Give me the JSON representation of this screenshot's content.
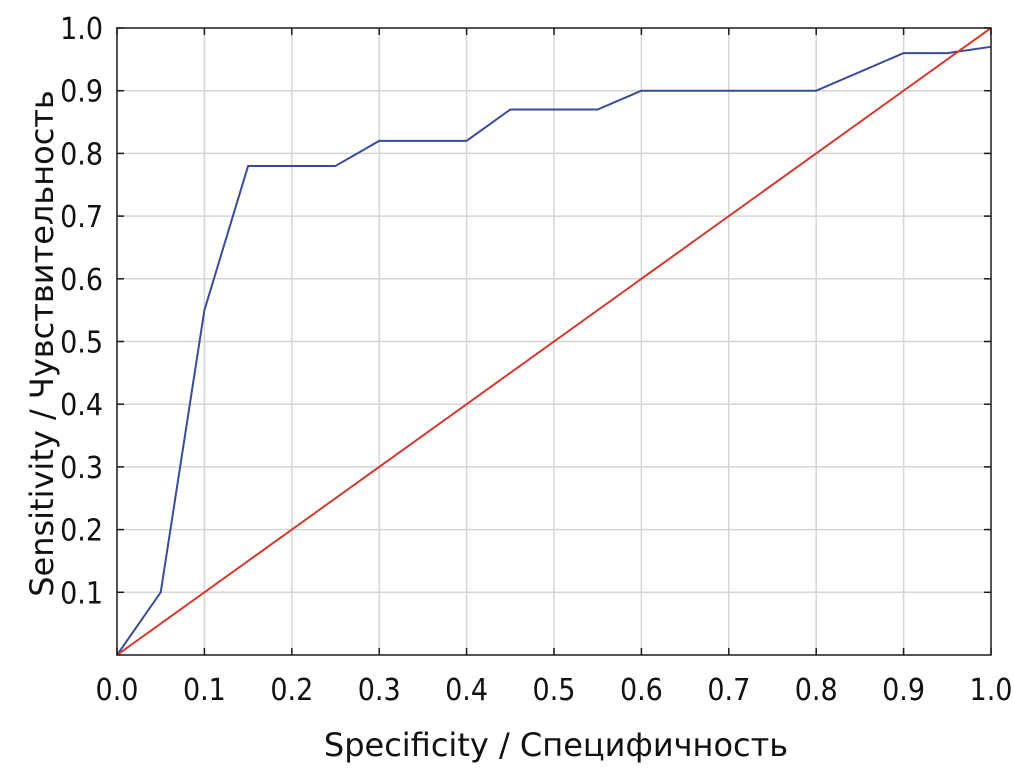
{
  "chart_data": {
    "type": "line",
    "xlabel": "Specificity / Специфичность",
    "ylabel": "Sensitivity / Чувствительность",
    "xlim": [
      0.0,
      1.0
    ],
    "ylim": [
      0.0,
      1.0
    ],
    "x_ticks": [
      "0.0",
      "0.1",
      "0.2",
      "0.3",
      "0.4",
      "0.5",
      "0.6",
      "0.7",
      "0.8",
      "0.9",
      "1.0"
    ],
    "y_ticks": [
      "0.1",
      "0.2",
      "0.3",
      "0.4",
      "0.5",
      "0.6",
      "0.7",
      "0.8",
      "0.9",
      "1.0"
    ],
    "grid": true,
    "legend": "none",
    "series": [
      {
        "color": "#3b4a9c",
        "points": [
          [
            0.0,
            0.0
          ],
          [
            0.05,
            0.1
          ],
          [
            0.1,
            0.55
          ],
          [
            0.15,
            0.78
          ],
          [
            0.25,
            0.78
          ],
          [
            0.3,
            0.82
          ],
          [
            0.4,
            0.82
          ],
          [
            0.45,
            0.87
          ],
          [
            0.55,
            0.87
          ],
          [
            0.6,
            0.9
          ],
          [
            0.8,
            0.9
          ],
          [
            0.9,
            0.96
          ],
          [
            0.95,
            0.96
          ],
          [
            1.0,
            0.97
          ]
        ]
      },
      {
        "color": "#d63a2f",
        "points": [
          [
            0.0,
            0.0
          ],
          [
            1.0,
            1.0
          ]
        ]
      }
    ]
  }
}
